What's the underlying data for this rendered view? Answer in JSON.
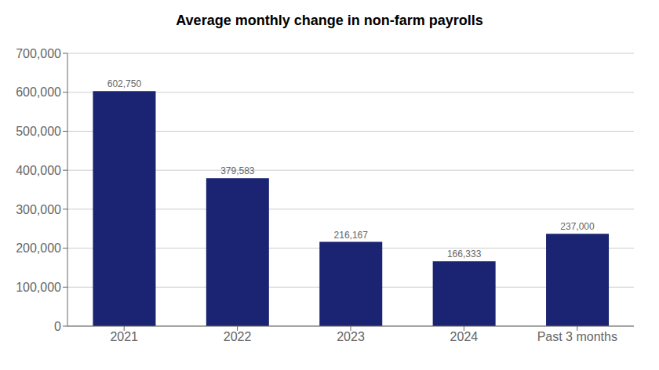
{
  "chart_data": {
    "type": "bar",
    "title": "Average monthly change in non-farm payrolls",
    "categories": [
      "2021",
      "2022",
      "2023",
      "2024",
      "Past 3 months"
    ],
    "values": [
      602750,
      379583,
      216167,
      166333,
      237000
    ],
    "value_labels": [
      "602,750",
      "379,583",
      "216,167",
      "166,333",
      "237,000"
    ],
    "data_labels": true,
    "color": "#1a2472",
    "ylim": [
      0,
      700000
    ],
    "yticks": [
      0,
      {
        "value": 100000,
        "label": "100,000"
      },
      {
        "value": 200000,
        "label": "200,000"
      },
      {
        "value": 300000,
        "label": "300,000"
      },
      {
        "value": 400000,
        "label": "400,000"
      },
      {
        "value": 500000,
        "label": "500,000"
      },
      {
        "value": 600000,
        "label": "600,000"
      },
      {
        "value": 700000,
        "label": "700,000"
      }
    ],
    "grid": true
  }
}
